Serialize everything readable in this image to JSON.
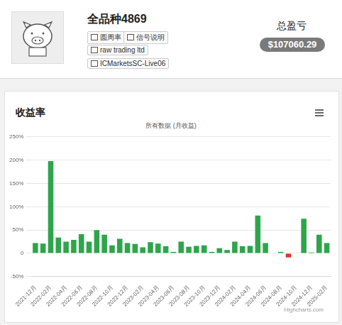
{
  "header": {
    "name": "全品种4869",
    "badges": [
      "圆周率",
      "信号说明",
      "raw trading ltd",
      "ICMarketsSC-Live06"
    ],
    "total_label": "总盈亏",
    "total_value": "$107060.29"
  },
  "chart_data": {
    "type": "bar",
    "title": "收益率",
    "subtitle": "所有数据 (月收益)",
    "credits": "Highcharts.com",
    "categories": [
      "2021-12月",
      null,
      "2022-02月",
      null,
      "2022-04月",
      null,
      "2022-06月",
      null,
      "2022-08月",
      null,
      "2022-10月",
      null,
      "2022-12月",
      null,
      "2023-02月",
      null,
      "2023-04月",
      null,
      "2023-06月",
      null,
      "2023-08月",
      null,
      "2023-10月",
      null,
      "2023-12月",
      null,
      "2024-02月",
      null,
      "2024-04月",
      null,
      "2024-06月",
      null,
      "2024-08月",
      null,
      "2024-10月",
      null,
      "2024-12月",
      null,
      "2025-02月"
    ],
    "values": [
      22,
      21,
      198,
      34,
      25,
      29,
      41,
      25,
      50,
      40,
      17,
      31,
      22,
      20,
      13,
      24,
      21,
      15,
      3,
      25,
      14,
      16,
      17,
      3,
      11,
      7,
      25,
      15,
      16,
      81,
      22,
      0,
      3,
      -9,
      0,
      74,
      2,
      40,
      22
    ],
    "colors": [
      "#2ea54a",
      "#2ea54a",
      "#2ea54a",
      "#2ea54a",
      "#2ea54a",
      "#2ea54a",
      "#2ea54a",
      "#2ea54a",
      "#2ea54a",
      "#2ea54a",
      "#2ea54a",
      "#2ea54a",
      "#2ea54a",
      "#2ea54a",
      "#2ea54a",
      "#2ea54a",
      "#2ea54a",
      "#2ea54a",
      "#2ea54a",
      "#2ea54a",
      "#2ea54a",
      "#2ea54a",
      "#2ea54a",
      "#2ea54a",
      "#2ea54a",
      "#2ea54a",
      "#2ea54a",
      "#2ea54a",
      "#2ea54a",
      "#2ea54a",
      "#2ea54a",
      "#2ea54a",
      "#2ea54a",
      "#e0302f",
      "#2ea54a",
      "#2ea54a",
      "#2ea54a",
      "#2ea54a",
      "#2ea54a"
    ],
    "ylim": [
      -50,
      250
    ],
    "yticks": [
      {
        "value": -50,
        "label": "-50%"
      },
      0,
      {
        "value": 50,
        "label": "50%"
      },
      {
        "value": 100,
        "label": "100%"
      },
      {
        "value": 150,
        "label": "150%"
      },
      {
        "value": 200,
        "label": "200%"
      },
      {
        "value": 250,
        "label": "250%"
      }
    ],
    "grid": true
  }
}
